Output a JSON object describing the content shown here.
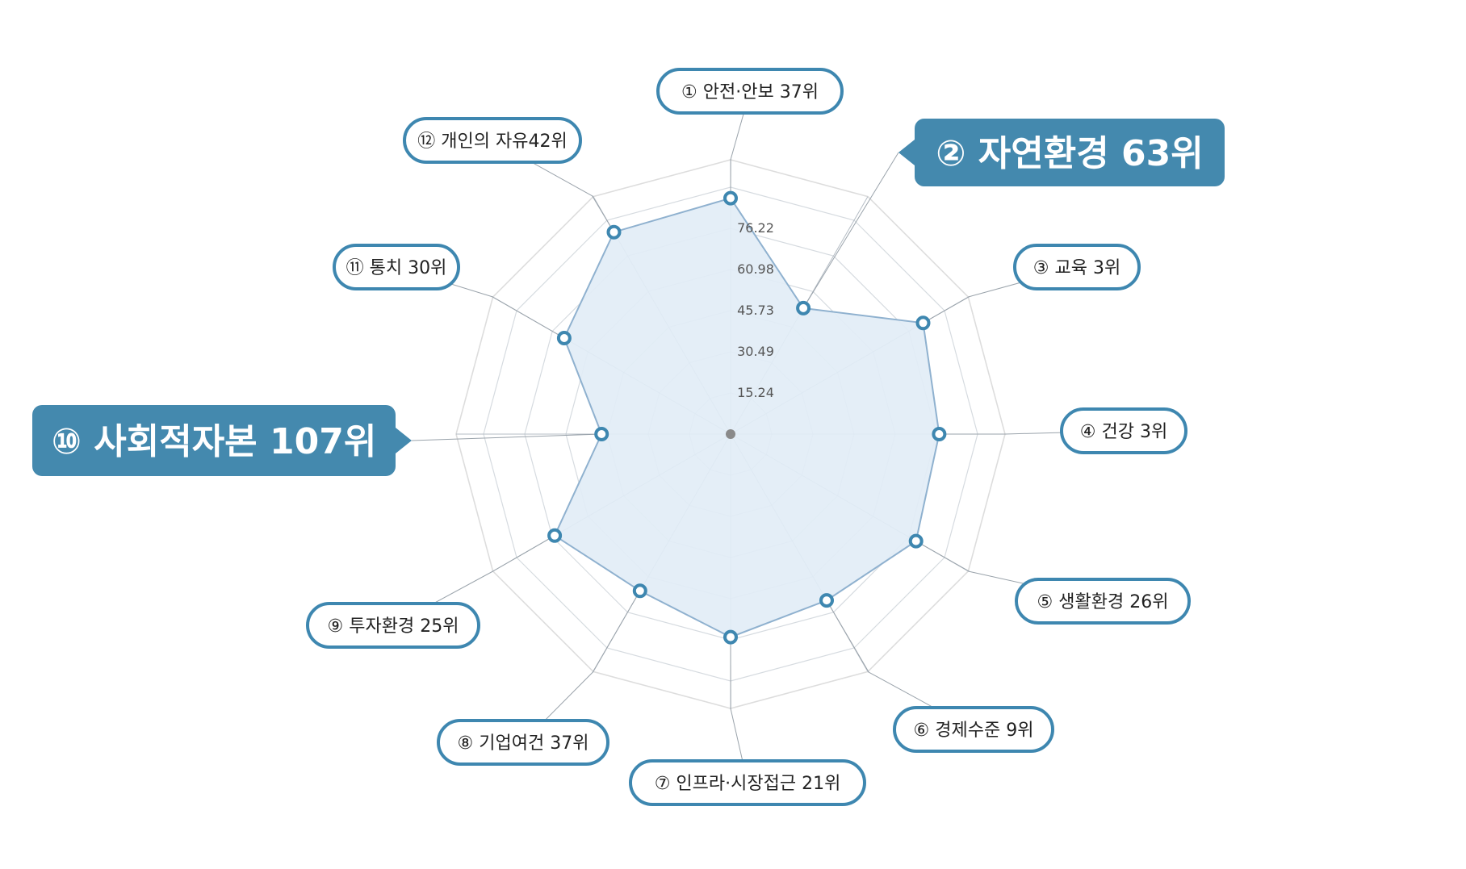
{
  "chart_data": {
    "type": "radar",
    "title": "",
    "ticks": [
      "15.24",
      "30.49",
      "45.73",
      "60.98",
      "76.22"
    ],
    "scale_max": 76.22,
    "categories": [
      {
        "label": "① 안전·안보 37위",
        "value": 86,
        "rank": 37
      },
      {
        "label": "② 자연환경 63위",
        "value": 53,
        "rank": 63,
        "highlight": true
      },
      {
        "label": "③ 교육 3위",
        "value": 81,
        "rank": 3
      },
      {
        "label": "④ 건강 3위",
        "value": 76,
        "rank": 3
      },
      {
        "label": "⑤ 생활환경 26위",
        "value": 78,
        "rank": 26
      },
      {
        "label": "⑥ 경제수준 9위",
        "value": 70,
        "rank": 9
      },
      {
        "label": "⑦ 인프라·시장접근 21위",
        "value": 74,
        "rank": 21
      },
      {
        "label": "⑧ 기업여건 37위",
        "value": 66,
        "rank": 37
      },
      {
        "label": "⑨ 투자환경 25위",
        "value": 74,
        "rank": 25
      },
      {
        "label": "⑩ 사회적자본 107위",
        "value": 47,
        "rank": 107,
        "highlight": true
      },
      {
        "label": "⑪ 통치 30위",
        "value": 70,
        "rank": 30
      },
      {
        "label": "⑫ 개인의 자유42위",
        "value": 85,
        "rank": 42
      }
    ],
    "colors": {
      "fill": "#e2edf6",
      "outline": "#8fb1cf",
      "marker": "#3e87b0",
      "pill_border": "#3e87b0",
      "callout": "#4489ae",
      "grid": "#d6dbe0"
    }
  }
}
